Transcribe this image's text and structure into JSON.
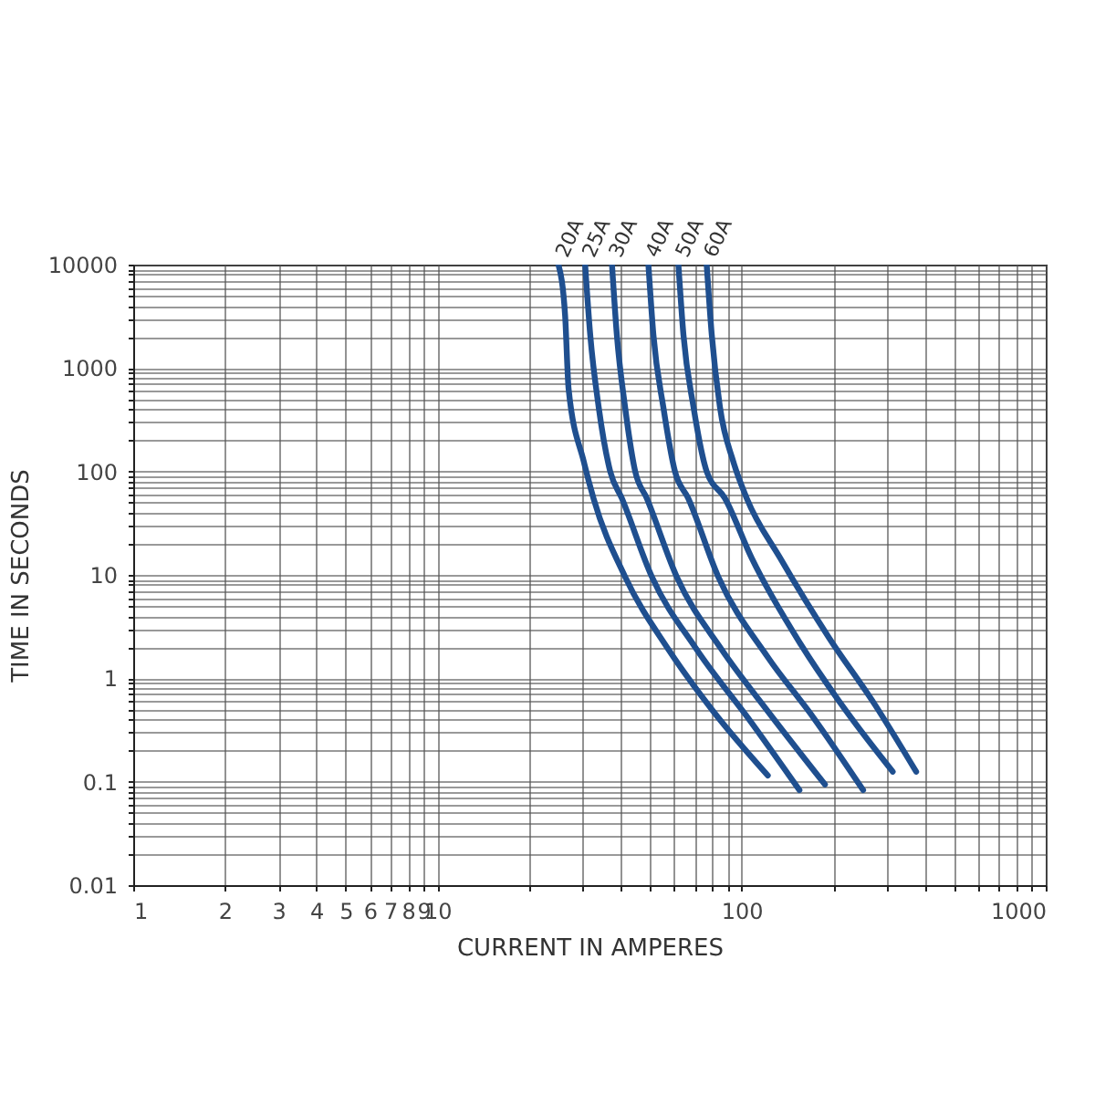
{
  "chart_data": {
    "type": "line",
    "xlabel": "CURRENT IN AMPERES",
    "ylabel": "TIME IN SECONDS",
    "log": "xy",
    "grid": true,
    "legend": false,
    "marker": "none",
    "line_style": "solid",
    "xlim": [
      1,
      1000
    ],
    "ylim": [
      0.01,
      10000
    ],
    "xticks": [
      1,
      2,
      3,
      4,
      5,
      6,
      7,
      8,
      9,
      10,
      {
        "value": 20,
        "label": null
      },
      {
        "value": 30,
        "label": null
      },
      {
        "value": 40,
        "label": null
      },
      {
        "value": 50,
        "label": null
      },
      {
        "value": 60,
        "label": null
      },
      {
        "value": 70,
        "label": null
      },
      {
        "value": 80,
        "label": null
      },
      {
        "value": 90,
        "label": null
      },
      100,
      {
        "value": 200,
        "label": null
      },
      {
        "value": 300,
        "label": null
      },
      {
        "value": 400,
        "label": null
      },
      {
        "value": 500,
        "label": null
      },
      {
        "value": 600,
        "label": null
      },
      {
        "value": 700,
        "label": null
      },
      {
        "value": 800,
        "label": null
      },
      {
        "value": 900,
        "label": null
      },
      1000
    ],
    "yticks": [
      0.01,
      {
        "value": 0.02,
        "label": null
      },
      {
        "value": 0.03,
        "label": null
      },
      {
        "value": 0.04,
        "label": null
      },
      {
        "value": 0.05,
        "label": null
      },
      {
        "value": 0.06,
        "label": null
      },
      {
        "value": 0.07,
        "label": null
      },
      {
        "value": 0.08,
        "label": null
      },
      {
        "value": 0.09,
        "label": null
      },
      0.1,
      {
        "value": 0.2,
        "label": null
      },
      {
        "value": 0.3,
        "label": null
      },
      {
        "value": 0.4,
        "label": null
      },
      {
        "value": 0.5,
        "label": null
      },
      {
        "value": 0.6,
        "label": null
      },
      {
        "value": 0.7,
        "label": null
      },
      {
        "value": 0.8,
        "label": null
      },
      {
        "value": 0.9,
        "label": null
      },
      1,
      {
        "value": 2,
        "label": null
      },
      {
        "value": 3,
        "label": null
      },
      {
        "value": 4,
        "label": null
      },
      {
        "value": 5,
        "label": null
      },
      {
        "value": 6,
        "label": null
      },
      {
        "value": 7,
        "label": null
      },
      {
        "value": 8,
        "label": null
      },
      {
        "value": 9,
        "label": null
      },
      10,
      {
        "value": 20,
        "label": null
      },
      {
        "value": 30,
        "label": null
      },
      {
        "value": 40,
        "label": null
      },
      {
        "value": 50,
        "label": null
      },
      {
        "value": 60,
        "label": null
      },
      {
        "value": 70,
        "label": null
      },
      {
        "value": 80,
        "label": null
      },
      {
        "value": 90,
        "label": null
      },
      100,
      {
        "value": 200,
        "label": null
      },
      {
        "value": 300,
        "label": null
      },
      {
        "value": 400,
        "label": null
      },
      {
        "value": 500,
        "label": null
      },
      {
        "value": 600,
        "label": null
      },
      {
        "value": 700,
        "label": null
      },
      {
        "value": 800,
        "label": null
      },
      {
        "value": 900,
        "label": null
      },
      1000,
      {
        "value": 2000,
        "label": null
      },
      {
        "value": 3000,
        "label": null
      },
      {
        "value": 4000,
        "label": null
      },
      {
        "value": 5000,
        "label": null
      },
      {
        "value": 6000,
        "label": null
      },
      {
        "value": 7000,
        "label": null
      },
      {
        "value": 8000,
        "label": null
      },
      {
        "value": 9000,
        "label": null
      },
      10000
    ],
    "series": [
      {
        "name": "20A",
        "color": "#1f4f8f",
        "x": [
          25,
          26.3,
          27,
          30.3,
          32.6,
          41.4,
          57.5,
          80.7,
          122
        ],
        "values": [
          10000,
          3200,
          630,
          124,
          55,
          9.6,
          1.9,
          0.48,
          0.115
        ]
      },
      {
        "name": "25A",
        "color": "#1f4f8f",
        "x": [
          30.6,
          31.8,
          33.9,
          37,
          40.4,
          50.7,
          71.2,
          108,
          155
        ],
        "values": [
          10000,
          2100,
          420,
          100,
          55,
          9.6,
          1.9,
          0.37,
          0.083
        ]
      },
      {
        "name": "30A",
        "color": "#1f4f8f",
        "x": [
          37.5,
          38.9,
          41.4,
          44.7,
          48.8,
          61.2,
          86,
          122,
          188
        ],
        "values": [
          10000,
          2100,
          420,
          100,
          55,
          9.6,
          1.9,
          0.48,
          0.094
        ]
      },
      {
        "name": "40A",
        "color": "#1f4f8f",
        "x": [
          49.4,
          51.3,
          55.3,
          60.4,
          66.8,
          83.8,
          122,
          172,
          251
        ],
        "values": [
          10000,
          2100,
          420,
          100,
          55,
          9.6,
          1.6,
          0.42,
          0.083
        ]
      },
      {
        "name": "50A",
        "color": "#1f4f8f",
        "x": [
          62,
          64.4,
          69.5,
          76.8,
          88.2,
          108,
          157,
          221,
          314
        ],
        "values": [
          10000,
          2100,
          420,
          100,
          55,
          14.5,
          2.1,
          0.48,
          0.125
        ]
      },
      {
        "name": "60A",
        "color": "#1f4f8f",
        "x": [
          76.8,
          79.8,
          84.9,
          94,
          104,
          134,
          195,
          274,
          375
        ],
        "values": [
          10000,
          2100,
          420,
          124,
          55,
          14.5,
          2.4,
          0.56,
          0.125
        ]
      }
    ]
  }
}
